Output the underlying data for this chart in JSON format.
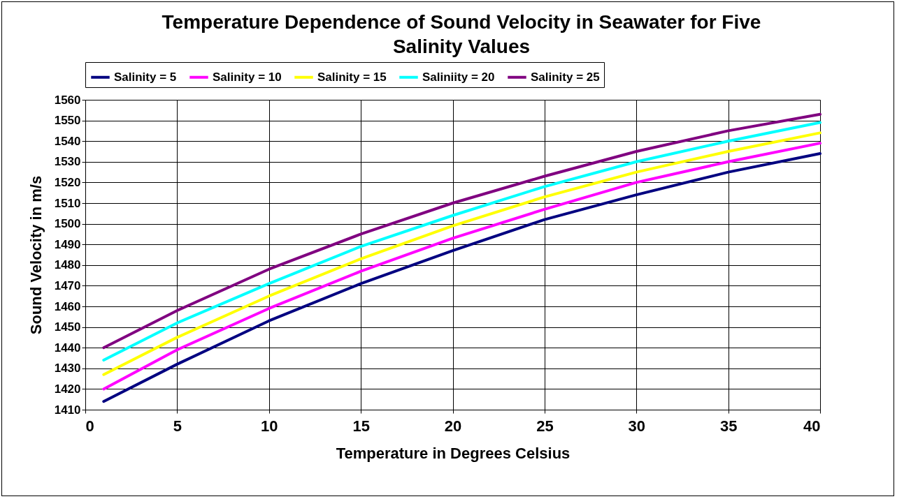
{
  "chart_data": {
    "type": "line",
    "title": "Temperature Dependence of Sound Velocity in Seawater for Five Salinity Values",
    "xlabel": "Temperature in Degrees Celsius",
    "ylabel": "Sound Velocity in m/s",
    "x": [
      1,
      5,
      10,
      15,
      20,
      25,
      30,
      35,
      40
    ],
    "series": [
      {
        "name": "Salinity = 5",
        "color": "#000080",
        "values": [
          1414,
          1432,
          1453,
          1471,
          1487,
          1502,
          1514,
          1525,
          1534
        ]
      },
      {
        "name": "Salinity = 10",
        "color": "#ff00ff",
        "values": [
          1420,
          1439,
          1459,
          1477,
          1493,
          1507,
          1520,
          1530,
          1539
        ]
      },
      {
        "name": "Salinity = 15",
        "color": "#ffff00",
        "values": [
          1427,
          1445,
          1465,
          1483,
          1499,
          1513,
          1525,
          1535,
          1544
        ]
      },
      {
        "name": "Saliniity = 20",
        "color": "#00ffff",
        "values": [
          1434,
          1452,
          1471,
          1489,
          1504,
          1518,
          1530,
          1540,
          1549
        ]
      },
      {
        "name": "Salinity = 25",
        "color": "#800080",
        "values": [
          1440,
          1458,
          1478,
          1495,
          1510,
          1523,
          1535,
          1545,
          1553
        ]
      }
    ],
    "xlim": [
      0,
      40
    ],
    "xticks": [
      0,
      5,
      10,
      15,
      20,
      25,
      30,
      35,
      40
    ],
    "ylim": [
      1410,
      1560
    ],
    "yticks": [
      1410,
      1420,
      1430,
      1440,
      1450,
      1460,
      1470,
      1480,
      1490,
      1500,
      1510,
      1520,
      1530,
      1540,
      1550,
      1560
    ],
    "grid": true,
    "legend": "top",
    "marker": "none",
    "line_style": "solid"
  }
}
